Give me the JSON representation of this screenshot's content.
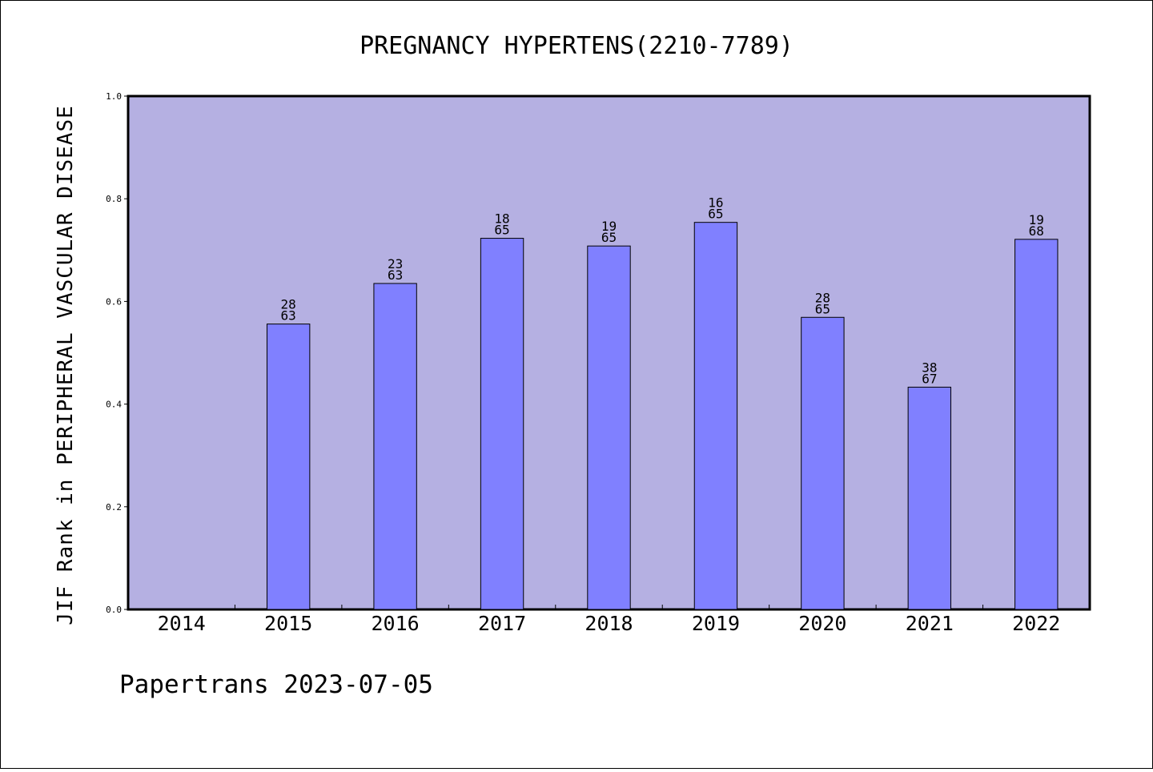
{
  "footer": "Papertrans 2023-07-05",
  "colors": {
    "plot_background": "#b5b0e2",
    "bar_fill": "#8080ff",
    "axis": "#000000"
  },
  "chart_data": {
    "type": "bar",
    "title": "PREGNANCY HYPERTENS(2210-7789)",
    "xlabel": "",
    "ylabel": "JIF Rank in PERIPHERAL VASCULAR DISEASE",
    "ylim": [
      0,
      1.0
    ],
    "yticks": [
      "0.0",
      "0.2",
      "0.4",
      "0.6",
      "0.8",
      "1.0"
    ],
    "grid": false,
    "categories": [
      "2014",
      "2015",
      "2016",
      "2017",
      "2018",
      "2019",
      "2020",
      "2021",
      "2022"
    ],
    "values": [
      null,
      0.556,
      0.635,
      0.723,
      0.708,
      0.754,
      0.569,
      0.433,
      0.721
    ],
    "rank_labels": [
      null,
      [
        "28",
        "63"
      ],
      [
        "23",
        "63"
      ],
      [
        "18",
        "65"
      ],
      [
        "19",
        "65"
      ],
      [
        "16",
        "65"
      ],
      [
        "28",
        "65"
      ],
      [
        "38",
        "67"
      ],
      [
        "19",
        "68"
      ]
    ]
  }
}
